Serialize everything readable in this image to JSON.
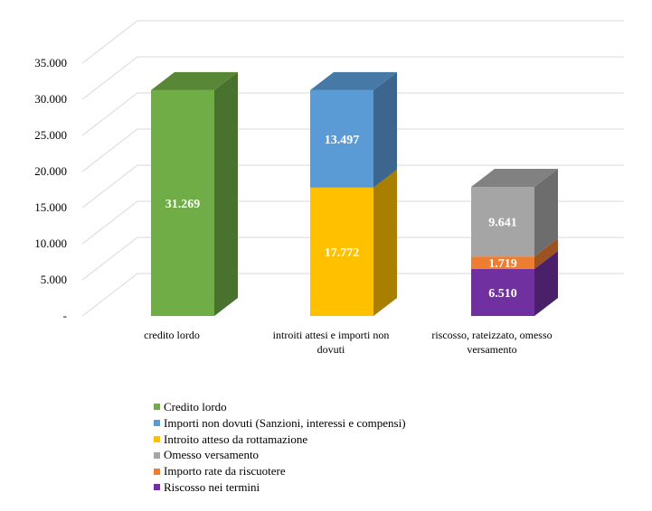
{
  "chart_data": {
    "type": "bar",
    "stacked": true,
    "three_d": true,
    "categories": [
      "credito lordo",
      "introiti attesi e importi non dovuti",
      "riscosso, rateizzato, omesso versamento"
    ],
    "category_labels": [
      [
        "credito lordo"
      ],
      [
        "introiti attesi e importi non",
        "dovuti"
      ],
      [
        "riscosso, rateizzato, omesso",
        "versamento"
      ]
    ],
    "ylim": [
      0,
      35000
    ],
    "yticks": [
      0,
      5000,
      10000,
      15000,
      20000,
      25000,
      30000,
      35000
    ],
    "ytick_labels": [
      "-",
      "5.000",
      "10.000",
      "15.000",
      "20.000",
      "25.000",
      "30.000",
      "35.000"
    ],
    "grid": true,
    "legend_position": "bottom",
    "series": [
      {
        "name": "Credito lordo",
        "color": "#70ad47",
        "values": [
          31269,
          null,
          null
        ],
        "labels": [
          "31.269",
          "",
          ""
        ]
      },
      {
        "name": "Importi non dovuti (Sanzioni, interessi e compensi)",
        "color": "#5b9bd5",
        "values": [
          null,
          13497,
          null
        ],
        "labels": [
          "",
          "13.497",
          ""
        ]
      },
      {
        "name": "Introito atteso da rottamazione",
        "color": "#ffc000",
        "values": [
          null,
          17772,
          null
        ],
        "labels": [
          "",
          "17.772",
          ""
        ]
      },
      {
        "name": "Omesso versamento",
        "color": "#a5a5a5",
        "values": [
          null,
          null,
          9641
        ],
        "labels": [
          "",
          "",
          "9.641"
        ]
      },
      {
        "name": "Importo rate da riscuotere",
        "color": "#ed7d31",
        "values": [
          null,
          null,
          1719
        ],
        "labels": [
          "",
          "",
          "1.719"
        ]
      },
      {
        "name": "Riscosso nei termini",
        "color": "#7030a0",
        "values": [
          null,
          null,
          6510
        ],
        "labels": [
          "",
          "",
          "6.510"
        ]
      }
    ],
    "stack_order": [
      [
        "Credito lordo"
      ],
      [
        "Introito atteso da rottamazione",
        "Importi non dovuti (Sanzioni, interessi e compensi)"
      ],
      [
        "Riscosso nei termini",
        "Importo rate da riscuotere",
        "Omesso versamento"
      ]
    ]
  }
}
